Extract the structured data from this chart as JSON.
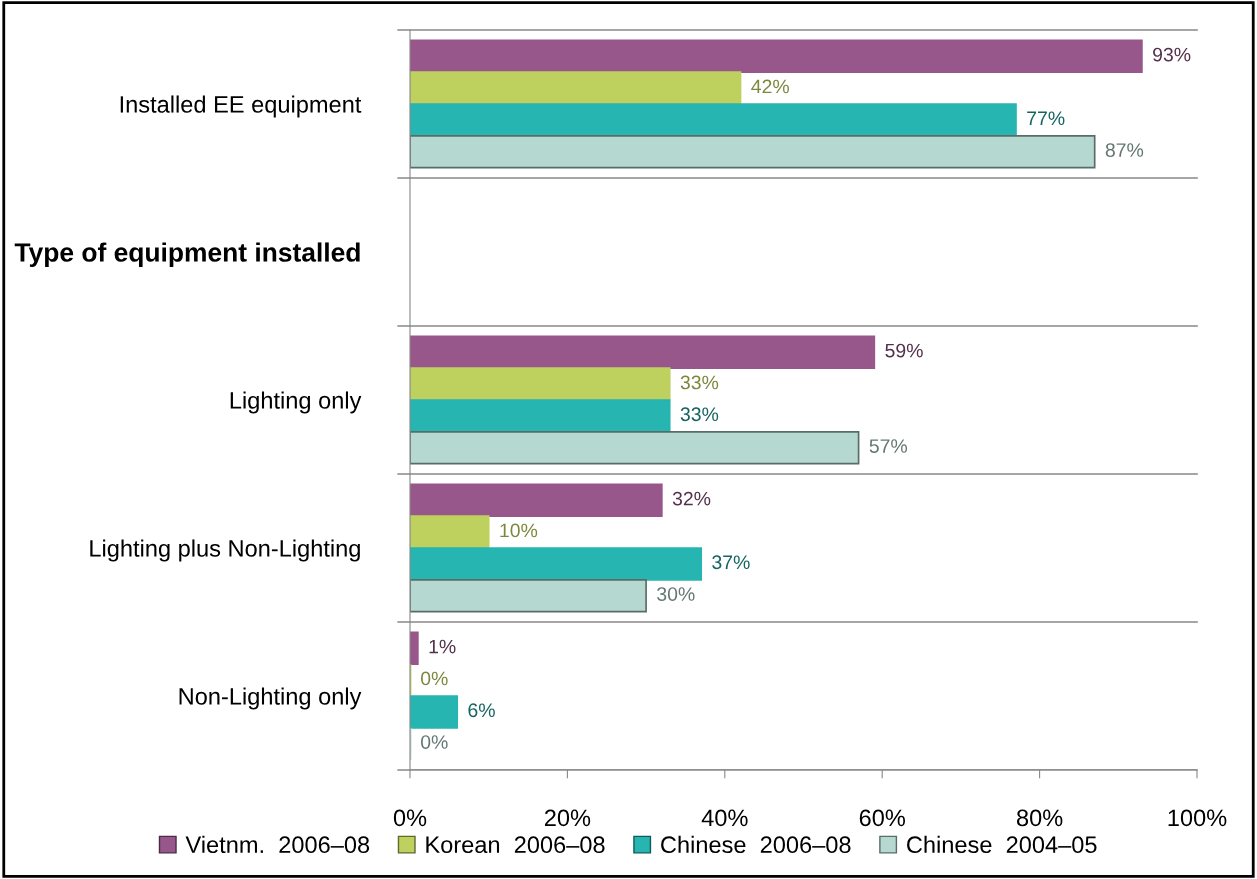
{
  "chart_data": {
    "type": "bar",
    "orientation": "horizontal",
    "categories": [
      "Installed EE equipment",
      "Type of equipment installed",
      "Lighting only",
      "Lighting plus Non-Lighting",
      "Non-Lighting only"
    ],
    "series": [
      {
        "name": "Vietnm.  2006–08",
        "color": "#97578a",
        "values": [
          93,
          null,
          59,
          32,
          1
        ],
        "value_labels": [
          "93%",
          null,
          "59%",
          "32%",
          "1%"
        ]
      },
      {
        "name": "Korean  2006–08",
        "color": "#bed05e",
        "values": [
          42,
          null,
          33,
          10,
          0
        ],
        "value_labels": [
          "42%",
          null,
          "33%",
          "10%",
          "0%"
        ]
      },
      {
        "name": "Chinese  2006–08",
        "color": "#26b5b0",
        "values": [
          77,
          null,
          33,
          37,
          6
        ],
        "value_labels": [
          "77%",
          null,
          "33%",
          "37%",
          "6%"
        ]
      },
      {
        "name": "Chinese  2004–05",
        "color": "#b5d8d1",
        "values": [
          87,
          null,
          57,
          30,
          0
        ],
        "value_labels": [
          "87%",
          null,
          "57%",
          "30%",
          "0%"
        ]
      }
    ],
    "xlim": [
      0,
      100
    ],
    "xticks": [
      {
        "value": 0,
        "label": "0%"
      },
      {
        "value": 20,
        "label": "20%"
      },
      {
        "value": 40,
        "label": "40%"
      },
      {
        "value": 60,
        "label": "60%"
      },
      {
        "value": 80,
        "label": "80%"
      },
      {
        "value": 100,
        "label": "100%"
      }
    ],
    "grid": false,
    "legend": "bottom"
  }
}
